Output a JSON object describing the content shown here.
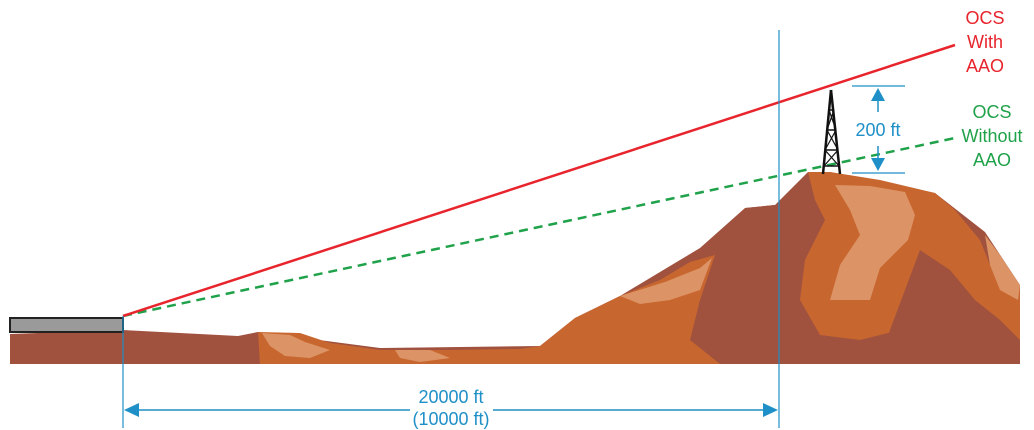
{
  "colors": {
    "ocs_with_aao": "#e8242c",
    "ocs_without_aao": "#1fa24a",
    "dimension": "#1f8fc7",
    "terrain_dark": "#a0523f",
    "terrain_mid": "#c8662f",
    "terrain_light": "#dc9466",
    "runway_fill": "#9a9a9a",
    "tower": "#111111"
  },
  "labels": {
    "with_aao": {
      "line1": "OCS",
      "line2": "With",
      "line3": "AAO"
    },
    "without_aao": {
      "line1": "OCS",
      "line2": "Without",
      "line3": "AAO"
    },
    "height": "200 ft",
    "distance_primary": "20000 ft",
    "distance_secondary": "(10000 ft)"
  },
  "icons": [
    "runway-threshold",
    "transmission-tower-icon",
    "terrain-hill"
  ]
}
